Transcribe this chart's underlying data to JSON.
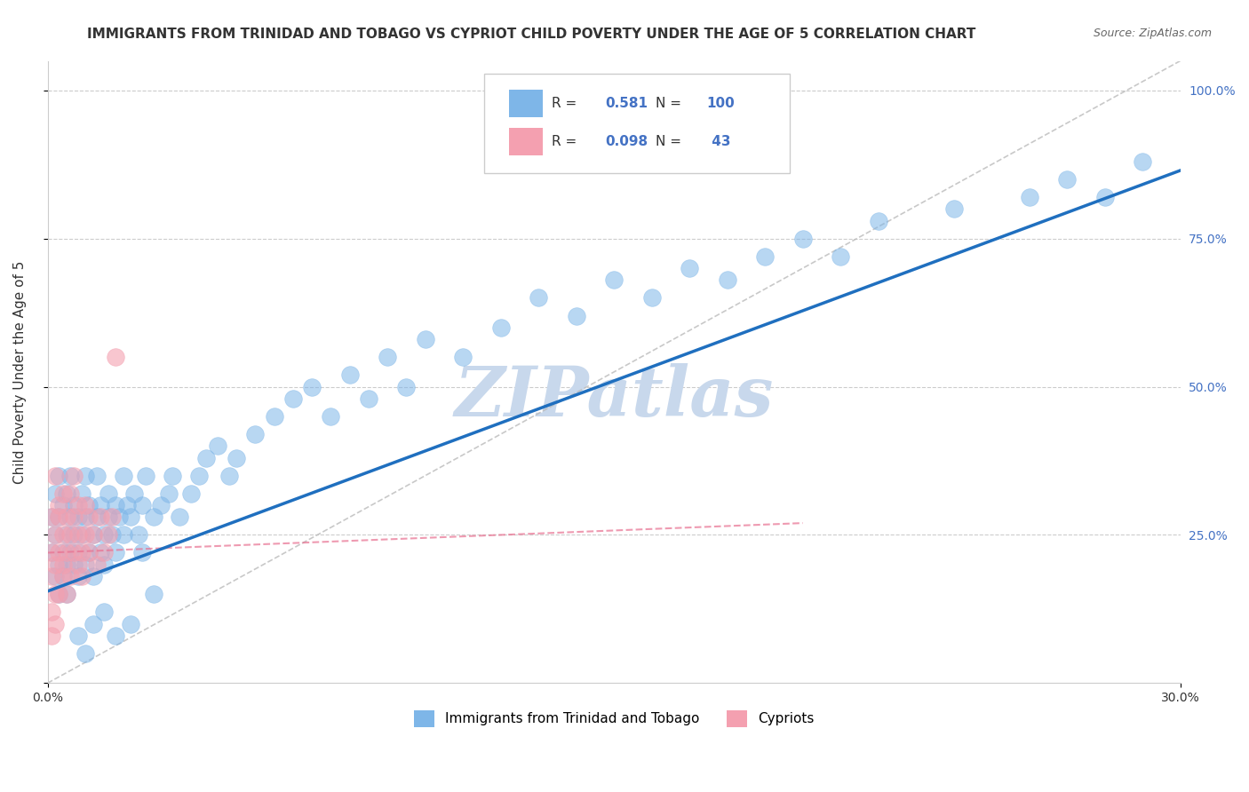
{
  "title": "IMMIGRANTS FROM TRINIDAD AND TOBAGO VS CYPRIOT CHILD POVERTY UNDER THE AGE OF 5 CORRELATION CHART",
  "source": "Source: ZipAtlas.com",
  "ylabel": "Child Poverty Under the Age of 5",
  "xlim": [
    0.0,
    0.3
  ],
  "ylim": [
    0.0,
    1.05
  ],
  "legend_blue_r": "0.581",
  "legend_blue_n": "100",
  "legend_pink_r": "0.098",
  "legend_pink_n": "43",
  "legend_label_blue": "Immigrants from Trinidad and Tobago",
  "legend_label_pink": "Cypriots",
  "blue_color": "#7EB6E8",
  "pink_color": "#F4A0B0",
  "trend_line_color": "#1F6FBF",
  "trend_pink_color": "#E87090",
  "ref_line_color": "#BBBBBB",
  "watermark_text": "ZIPatlas",
  "watermark_color": "#C8D8EC",
  "title_color": "#333333",
  "title_fontsize": 11,
  "source_fontsize": 9,
  "right_tick_color": "#4472C4",
  "blue_scatter_x": [
    0.001,
    0.001,
    0.002,
    0.002,
    0.002,
    0.003,
    0.003,
    0.003,
    0.003,
    0.004,
    0.004,
    0.004,
    0.005,
    0.005,
    0.005,
    0.005,
    0.006,
    0.006,
    0.006,
    0.007,
    0.007,
    0.007,
    0.008,
    0.008,
    0.008,
    0.009,
    0.009,
    0.01,
    0.01,
    0.01,
    0.011,
    0.011,
    0.012,
    0.012,
    0.013,
    0.013,
    0.014,
    0.014,
    0.015,
    0.015,
    0.016,
    0.016,
    0.017,
    0.018,
    0.018,
    0.019,
    0.02,
    0.02,
    0.021,
    0.022,
    0.023,
    0.024,
    0.025,
    0.025,
    0.026,
    0.028,
    0.03,
    0.032,
    0.033,
    0.035,
    0.038,
    0.04,
    0.042,
    0.045,
    0.048,
    0.05,
    0.055,
    0.06,
    0.065,
    0.07,
    0.075,
    0.08,
    0.085,
    0.09,
    0.095,
    0.1,
    0.11,
    0.12,
    0.13,
    0.14,
    0.15,
    0.16,
    0.17,
    0.18,
    0.19,
    0.2,
    0.21,
    0.22,
    0.24,
    0.26,
    0.27,
    0.28,
    0.29,
    0.008,
    0.01,
    0.012,
    0.015,
    0.018,
    0.022,
    0.028
  ],
  "blue_scatter_y": [
    0.22,
    0.28,
    0.18,
    0.32,
    0.25,
    0.2,
    0.28,
    0.15,
    0.35,
    0.22,
    0.3,
    0.18,
    0.25,
    0.2,
    0.32,
    0.15,
    0.22,
    0.28,
    0.35,
    0.2,
    0.25,
    0.3,
    0.18,
    0.28,
    0.22,
    0.25,
    0.32,
    0.2,
    0.28,
    0.35,
    0.22,
    0.3,
    0.25,
    0.18,
    0.28,
    0.35,
    0.22,
    0.3,
    0.25,
    0.2,
    0.32,
    0.28,
    0.25,
    0.3,
    0.22,
    0.28,
    0.25,
    0.35,
    0.3,
    0.28,
    0.32,
    0.25,
    0.3,
    0.22,
    0.35,
    0.28,
    0.3,
    0.32,
    0.35,
    0.28,
    0.32,
    0.35,
    0.38,
    0.4,
    0.35,
    0.38,
    0.42,
    0.45,
    0.48,
    0.5,
    0.45,
    0.52,
    0.48,
    0.55,
    0.5,
    0.58,
    0.55,
    0.6,
    0.65,
    0.62,
    0.68,
    0.65,
    0.7,
    0.68,
    0.72,
    0.75,
    0.72,
    0.78,
    0.8,
    0.82,
    0.85,
    0.82,
    0.88,
    0.08,
    0.05,
    0.1,
    0.12,
    0.08,
    0.1,
    0.15
  ],
  "pink_scatter_x": [
    0.001,
    0.001,
    0.001,
    0.001,
    0.002,
    0.002,
    0.002,
    0.002,
    0.003,
    0.003,
    0.003,
    0.003,
    0.004,
    0.004,
    0.004,
    0.004,
    0.005,
    0.005,
    0.005,
    0.006,
    0.006,
    0.006,
    0.007,
    0.007,
    0.007,
    0.008,
    0.008,
    0.008,
    0.009,
    0.009,
    0.01,
    0.01,
    0.011,
    0.011,
    0.012,
    0.013,
    0.014,
    0.015,
    0.016,
    0.017,
    0.018,
    0.001,
    0.002
  ],
  "pink_scatter_y": [
    0.18,
    0.28,
    0.22,
    0.12,
    0.2,
    0.35,
    0.15,
    0.25,
    0.22,
    0.3,
    0.15,
    0.28,
    0.2,
    0.32,
    0.18,
    0.25,
    0.22,
    0.28,
    0.15,
    0.25,
    0.32,
    0.18,
    0.22,
    0.28,
    0.35,
    0.2,
    0.25,
    0.3,
    0.22,
    0.18,
    0.25,
    0.3,
    0.22,
    0.28,
    0.25,
    0.2,
    0.28,
    0.22,
    0.25,
    0.28,
    0.55,
    0.08,
    0.1
  ],
  "blue_trend_x": [
    0.0,
    0.3
  ],
  "blue_trend_y": [
    0.155,
    0.865
  ],
  "pink_trend_x": [
    0.0,
    0.2
  ],
  "pink_trend_y": [
    0.22,
    0.27
  ],
  "ref_line_x": [
    0.0,
    0.3
  ],
  "ref_line_y": [
    0.0,
    1.05
  ]
}
